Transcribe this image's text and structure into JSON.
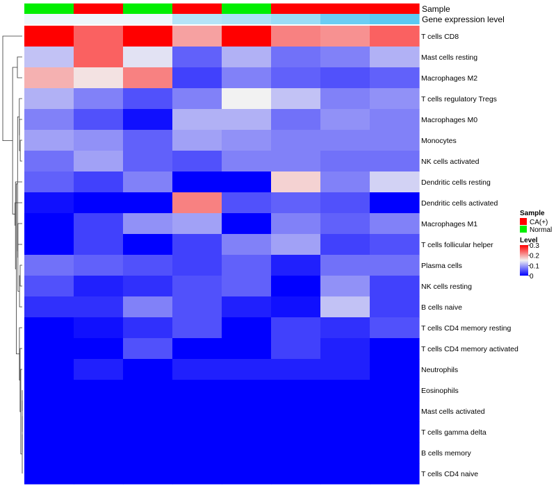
{
  "chart_data": {
    "type": "heatmap",
    "annotation_tracks": [
      {
        "name": "Sample",
        "values": [
          "Normal",
          "CA(+)",
          "Normal",
          "CA(+)",
          "Normal",
          "CA(+)",
          "CA(+)",
          "CA(+)"
        ]
      },
      {
        "name": "Gene expression level",
        "values": [
          0.0,
          0.0,
          0.0,
          0.07,
          0.08,
          0.1,
          0.16,
          0.18
        ]
      }
    ],
    "rows": [
      "T cells CD8",
      "Mast cells resting",
      "Macrophages M2",
      "T cells regulatory  Tregs",
      "Macrophages M0",
      "Monocytes",
      "NK cells activated",
      "Dendritic cells resting",
      "Dendritic cells activated",
      "Macrophages M1",
      "T cells follicular helper",
      "Plasma cells",
      "NK cells resting",
      "B cells naive",
      "T cells CD4 memory resting",
      "T cells CD4 memory activated",
      "Neutrophils",
      "Eosinophils",
      "Mast cells activated",
      "T cells gamma delta",
      "B cells memory",
      "T cells CD4 naive"
    ],
    "values": [
      [
        0.3,
        0.24,
        0.3,
        0.2,
        0.3,
        0.22,
        0.21,
        0.24
      ],
      [
        0.12,
        0.24,
        0.14,
        0.06,
        0.11,
        0.07,
        0.08,
        0.11
      ],
      [
        0.19,
        0.16,
        0.22,
        0.04,
        0.08,
        0.06,
        0.05,
        0.06
      ],
      [
        0.11,
        0.08,
        0.05,
        0.08,
        0.15,
        0.12,
        0.08,
        0.09
      ],
      [
        0.08,
        0.05,
        0.01,
        0.11,
        0.11,
        0.07,
        0.09,
        0.08
      ],
      [
        0.1,
        0.09,
        0.06,
        0.1,
        0.09,
        0.08,
        0.08,
        0.08
      ],
      [
        0.07,
        0.1,
        0.06,
        0.05,
        0.08,
        0.08,
        0.07,
        0.07
      ],
      [
        0.06,
        0.04,
        0.08,
        0.0,
        0.0,
        0.17,
        0.08,
        0.13
      ],
      [
        0.01,
        0.0,
        0.0,
        0.22,
        0.05,
        0.06,
        0.05,
        0.0
      ],
      [
        0.0,
        0.04,
        0.09,
        0.1,
        0.0,
        0.08,
        0.06,
        0.08
      ],
      [
        0.0,
        0.04,
        0.0,
        0.04,
        0.08,
        0.1,
        0.04,
        0.05
      ],
      [
        0.07,
        0.06,
        0.05,
        0.04,
        0.06,
        0.02,
        0.07,
        0.07
      ],
      [
        0.05,
        0.02,
        0.03,
        0.05,
        0.06,
        0.0,
        0.09,
        0.04
      ],
      [
        0.03,
        0.03,
        0.08,
        0.05,
        0.02,
        0.01,
        0.12,
        0.04
      ],
      [
        0.0,
        0.01,
        0.03,
        0.05,
        0.0,
        0.04,
        0.03,
        0.05
      ],
      [
        0.0,
        0.0,
        0.05,
        0.0,
        0.0,
        0.04,
        0.02,
        0.0
      ],
      [
        0.0,
        0.02,
        0.0,
        0.02,
        0.02,
        0.02,
        0.02,
        0.0
      ],
      [
        0.0,
        0.0,
        0.0,
        0.0,
        0.0,
        0.0,
        0.0,
        0.0
      ],
      [
        0.0,
        0.0,
        0.0,
        0.0,
        0.0,
        0.0,
        0.0,
        0.0
      ],
      [
        0.0,
        0.0,
        0.0,
        0.0,
        0.0,
        0.0,
        0.0,
        0.0
      ],
      [
        0.0,
        0.0,
        0.0,
        0.0,
        0.0,
        0.0,
        0.0,
        0.0
      ],
      [
        0.0,
        0.0,
        0.0,
        0.0,
        0.0,
        0.0,
        0.0,
        0.0
      ]
    ],
    "color_scale": {
      "min": 0,
      "max": 0.3,
      "low_color": "#0000ff",
      "mid_color": "#f2f2f2",
      "high_color": "#ff0000",
      "mid_value": 0.15
    },
    "annotation_scale": {
      "low_color": "#eef6fb",
      "high_color": "#5bc8f2"
    },
    "legend": {
      "position": "right",
      "sample_title": "Sample",
      "sample_items": [
        {
          "label": "CA(+)",
          "color": "#ff0000"
        },
        {
          "label": "Normal",
          "color": "#00ee00"
        }
      ],
      "level_title": "Level",
      "level_ticks": [
        "0.3",
        "0.2",
        "0.1",
        "0"
      ]
    },
    "row_dendrogram": true
  }
}
